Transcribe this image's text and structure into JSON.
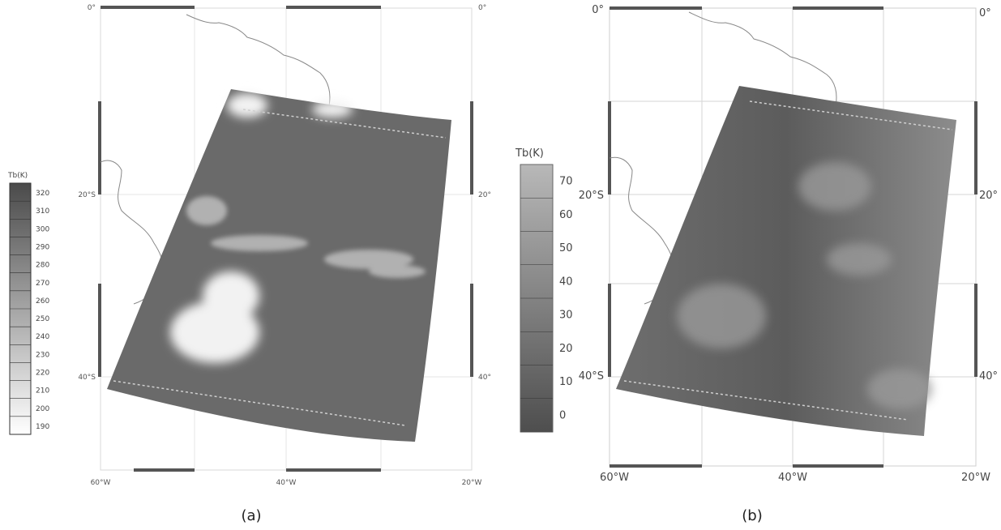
{
  "panel_a": {
    "caption": "(a)",
    "lat_labels_left": [
      "0°",
      "20°S",
      "40°S"
    ],
    "lat_labels_right": [
      "0°",
      "20°",
      "40°"
    ],
    "lon_labels": [
      "60°W",
      "40°W",
      "20°W"
    ],
    "colorbar": {
      "title": "Tb(K)",
      "ticks": [
        "320",
        "310",
        "300",
        "290",
        "280",
        "270",
        "260",
        "250",
        "240",
        "230",
        "220",
        "210",
        "200",
        "190"
      ]
    }
  },
  "panel_b": {
    "caption": "(b)",
    "lat_labels_left": [
      "0°",
      "20°S",
      "40°S"
    ],
    "lat_labels_right": [
      "0°",
      "20°",
      "40°"
    ],
    "lon_labels": [
      "60°W",
      "40°W",
      "20°W"
    ],
    "colorbar": {
      "title": "Tb(K)",
      "ticks": [
        "70",
        "60",
        "50",
        "40",
        "30",
        "20",
        "10",
        "0"
      ]
    }
  },
  "colors": {
    "swath_a": "#6a6a6a",
    "swath_b": "#7a7a7a",
    "coast": "#888888",
    "frame_bar": "#555555"
  }
}
